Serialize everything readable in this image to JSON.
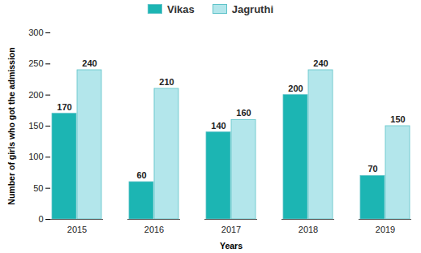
{
  "chart_data": {
    "type": "bar",
    "categories": [
      "2015",
      "2016",
      "2017",
      "2018",
      "2019"
    ],
    "series": [
      {
        "name": "Vikas",
        "color": "#1cb5b3",
        "values": [
          170,
          60,
          140,
          200,
          70
        ]
      },
      {
        "name": "Jagruthi",
        "color": "#b3e6eb",
        "values": [
          240,
          210,
          160,
          240,
          150
        ]
      }
    ],
    "x_label": "Years",
    "y_label": "Number of girls who got the admission",
    "ylim": [
      0,
      300
    ],
    "yticks": [
      0,
      50,
      100,
      150,
      200,
      250,
      300
    ],
    "grid": false,
    "legend": "top",
    "data_labels": true
  }
}
